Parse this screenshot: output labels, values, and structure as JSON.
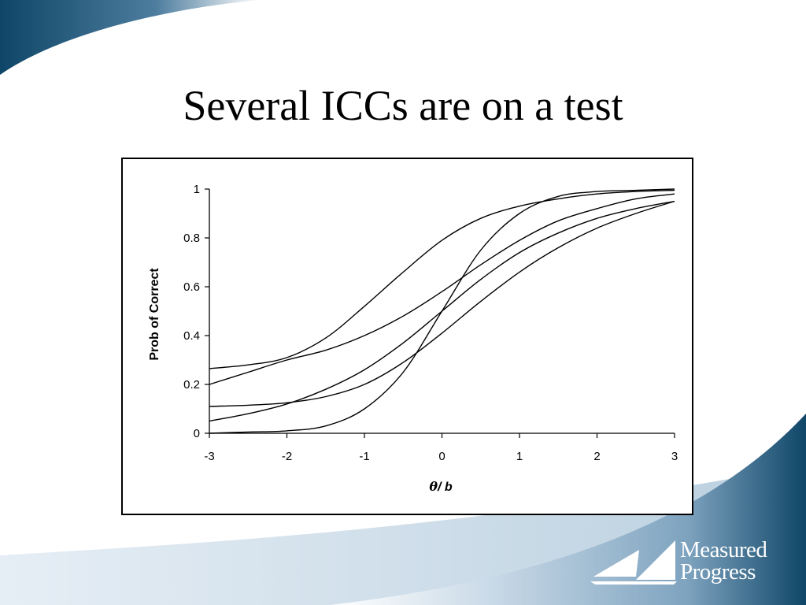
{
  "slide": {
    "title": "Several ICCs are on a test"
  },
  "logo": {
    "line1": "Measured",
    "line2": "Progress",
    "icon": "sail-logo-icon"
  },
  "colors": {
    "bg_dark": "#0f4668",
    "bg_light": "#b9cfdf",
    "line": "#000000"
  },
  "chart_data": {
    "type": "line",
    "title": "",
    "xlabel_symbol": "θ",
    "xlabel_rest": "/ b",
    "ylabel": "Prob of Correct",
    "xlim": [
      -3,
      3
    ],
    "ylim": [
      0,
      1
    ],
    "x_ticks": [
      -3,
      -2,
      -1,
      0,
      1,
      2,
      3
    ],
    "x_tick_labels": [
      "-3",
      "-2",
      "-1",
      "0",
      "1",
      "2",
      "3"
    ],
    "y_ticks": [
      0,
      0.2,
      0.4,
      0.6,
      0.8,
      1
    ],
    "y_tick_labels": [
      "0",
      "0.2",
      "0.4",
      "0.6",
      "0.8",
      "1"
    ],
    "grid": false,
    "legend": "none",
    "x": [
      -3,
      -2.5,
      -2,
      -1.5,
      -1,
      -0.5,
      0,
      0.5,
      1,
      1.5,
      2,
      2.5,
      3
    ],
    "series": [
      {
        "values": [
          0.265,
          0.28,
          0.31,
          0.39,
          0.52,
          0.66,
          0.79,
          0.88,
          0.93,
          0.96,
          0.98,
          0.99,
          0.995
        ]
      },
      {
        "values": [
          0.2,
          0.25,
          0.3,
          0.34,
          0.4,
          0.48,
          0.58,
          0.69,
          0.79,
          0.87,
          0.92,
          0.96,
          0.98
        ]
      },
      {
        "values": [
          0.11,
          0.115,
          0.125,
          0.15,
          0.2,
          0.29,
          0.41,
          0.54,
          0.66,
          0.76,
          0.84,
          0.9,
          0.95
        ]
      },
      {
        "values": [
          0.05,
          0.08,
          0.12,
          0.18,
          0.26,
          0.37,
          0.5,
          0.63,
          0.74,
          0.82,
          0.88,
          0.92,
          0.95
        ]
      },
      {
        "values": [
          0.0,
          0.005,
          0.01,
          0.03,
          0.1,
          0.25,
          0.5,
          0.75,
          0.9,
          0.97,
          0.99,
          0.995,
          1.0
        ]
      }
    ]
  }
}
